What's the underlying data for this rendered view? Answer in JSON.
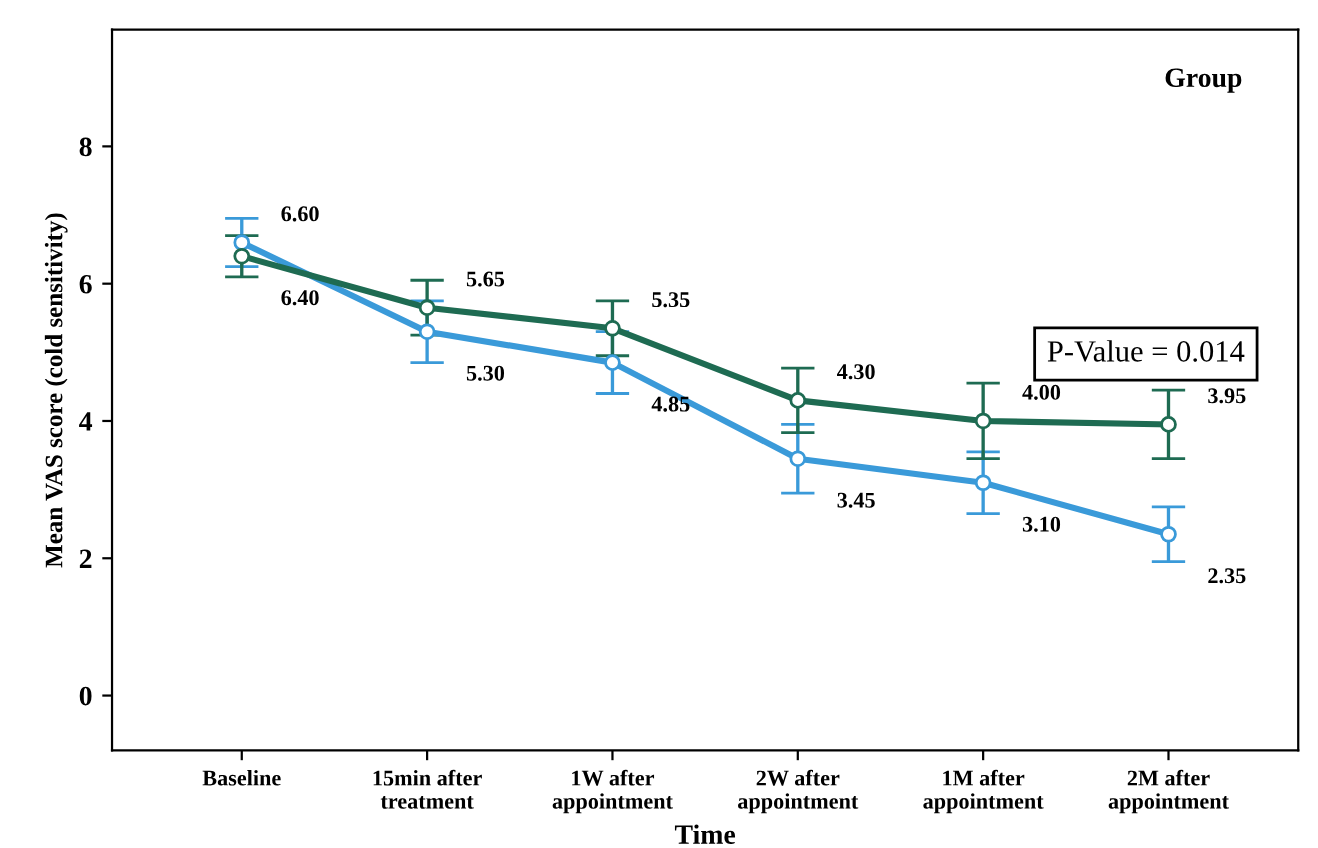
{
  "chart_data": {
    "type": "line",
    "xlabel": "Time",
    "ylabel": "Mean VAS score (cold sensitivity)",
    "marker": "circle",
    "line_style": "solid",
    "grid": false,
    "categories": [
      "Baseline",
      "15min after\ntreatment",
      "1W after\nappointment",
      "2W after\nappointment",
      "1M after\nappointment",
      "2M after\nappointment"
    ],
    "ylim": [
      -0.8,
      9.7
    ],
    "yticks": [
      0,
      2,
      4,
      6,
      8
    ],
    "series": [
      {
        "color": "#3a9ad9",
        "values": [
          6.6,
          5.3,
          4.85,
          3.45,
          3.1,
          2.35
        ],
        "value_labels": [
          "6.60",
          "5.30",
          "4.85",
          "3.45",
          "3.10",
          "2.35"
        ],
        "errors": [
          0.35,
          0.45,
          0.45,
          0.5,
          0.45,
          0.4
        ]
      },
      {
        "color": "#1e6b52",
        "values": [
          6.4,
          5.65,
          5.35,
          4.3,
          4.0,
          3.95
        ],
        "value_labels": [
          "6.40",
          "5.65",
          "5.35",
          "4.30",
          "4.00",
          "3.95"
        ],
        "errors": [
          0.3,
          0.4,
          0.4,
          0.47,
          0.55,
          0.5
        ]
      }
    ],
    "annotations": [
      "P-Value = 0.014",
      "Group"
    ]
  }
}
